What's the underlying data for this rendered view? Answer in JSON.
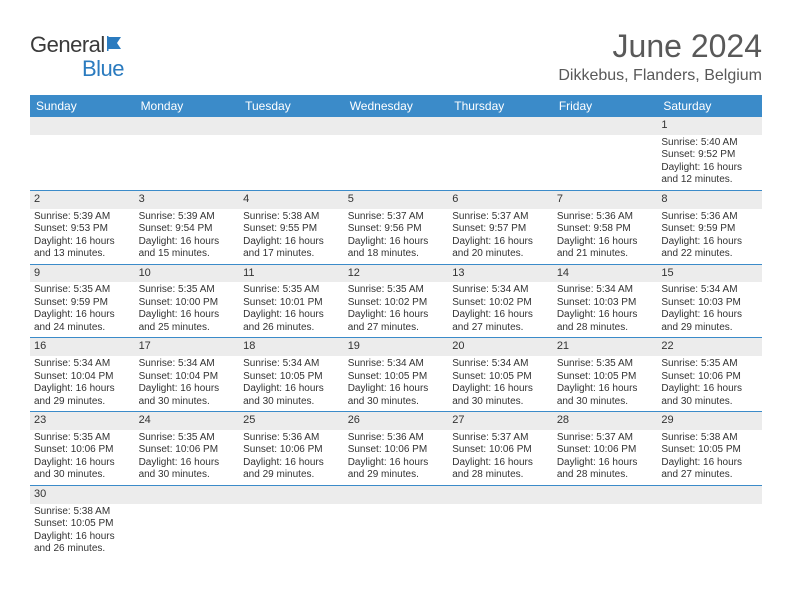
{
  "logo": {
    "part1": "General",
    "part2": "Blue"
  },
  "title": "June 2024",
  "location": "Dikkebus, Flanders, Belgium",
  "dayHeaders": [
    "Sunday",
    "Monday",
    "Tuesday",
    "Wednesday",
    "Thursday",
    "Friday",
    "Saturday"
  ],
  "colors": {
    "headerBg": "#3b8bc9",
    "headerText": "#ffffff",
    "dayNumBg": "#ececec",
    "titleColor": "#595959",
    "brandBlue": "#2b7bbf"
  },
  "weeks": [
    [
      null,
      null,
      null,
      null,
      null,
      null,
      {
        "n": "1",
        "sr": "5:40 AM",
        "ss": "9:52 PM",
        "dl": "16 hours and 12 minutes."
      }
    ],
    [
      {
        "n": "2",
        "sr": "5:39 AM",
        "ss": "9:53 PM",
        "dl": "16 hours and 13 minutes."
      },
      {
        "n": "3",
        "sr": "5:39 AM",
        "ss": "9:54 PM",
        "dl": "16 hours and 15 minutes."
      },
      {
        "n": "4",
        "sr": "5:38 AM",
        "ss": "9:55 PM",
        "dl": "16 hours and 17 minutes."
      },
      {
        "n": "5",
        "sr": "5:37 AM",
        "ss": "9:56 PM",
        "dl": "16 hours and 18 minutes."
      },
      {
        "n": "6",
        "sr": "5:37 AM",
        "ss": "9:57 PM",
        "dl": "16 hours and 20 minutes."
      },
      {
        "n": "7",
        "sr": "5:36 AM",
        "ss": "9:58 PM",
        "dl": "16 hours and 21 minutes."
      },
      {
        "n": "8",
        "sr": "5:36 AM",
        "ss": "9:59 PM",
        "dl": "16 hours and 22 minutes."
      }
    ],
    [
      {
        "n": "9",
        "sr": "5:35 AM",
        "ss": "9:59 PM",
        "dl": "16 hours and 24 minutes."
      },
      {
        "n": "10",
        "sr": "5:35 AM",
        "ss": "10:00 PM",
        "dl": "16 hours and 25 minutes."
      },
      {
        "n": "11",
        "sr": "5:35 AM",
        "ss": "10:01 PM",
        "dl": "16 hours and 26 minutes."
      },
      {
        "n": "12",
        "sr": "5:35 AM",
        "ss": "10:02 PM",
        "dl": "16 hours and 27 minutes."
      },
      {
        "n": "13",
        "sr": "5:34 AM",
        "ss": "10:02 PM",
        "dl": "16 hours and 27 minutes."
      },
      {
        "n": "14",
        "sr": "5:34 AM",
        "ss": "10:03 PM",
        "dl": "16 hours and 28 minutes."
      },
      {
        "n": "15",
        "sr": "5:34 AM",
        "ss": "10:03 PM",
        "dl": "16 hours and 29 minutes."
      }
    ],
    [
      {
        "n": "16",
        "sr": "5:34 AM",
        "ss": "10:04 PM",
        "dl": "16 hours and 29 minutes."
      },
      {
        "n": "17",
        "sr": "5:34 AM",
        "ss": "10:04 PM",
        "dl": "16 hours and 30 minutes."
      },
      {
        "n": "18",
        "sr": "5:34 AM",
        "ss": "10:05 PM",
        "dl": "16 hours and 30 minutes."
      },
      {
        "n": "19",
        "sr": "5:34 AM",
        "ss": "10:05 PM",
        "dl": "16 hours and 30 minutes."
      },
      {
        "n": "20",
        "sr": "5:34 AM",
        "ss": "10:05 PM",
        "dl": "16 hours and 30 minutes."
      },
      {
        "n": "21",
        "sr": "5:35 AM",
        "ss": "10:05 PM",
        "dl": "16 hours and 30 minutes."
      },
      {
        "n": "22",
        "sr": "5:35 AM",
        "ss": "10:06 PM",
        "dl": "16 hours and 30 minutes."
      }
    ],
    [
      {
        "n": "23",
        "sr": "5:35 AM",
        "ss": "10:06 PM",
        "dl": "16 hours and 30 minutes."
      },
      {
        "n": "24",
        "sr": "5:35 AM",
        "ss": "10:06 PM",
        "dl": "16 hours and 30 minutes."
      },
      {
        "n": "25",
        "sr": "5:36 AM",
        "ss": "10:06 PM",
        "dl": "16 hours and 29 minutes."
      },
      {
        "n": "26",
        "sr": "5:36 AM",
        "ss": "10:06 PM",
        "dl": "16 hours and 29 minutes."
      },
      {
        "n": "27",
        "sr": "5:37 AM",
        "ss": "10:06 PM",
        "dl": "16 hours and 28 minutes."
      },
      {
        "n": "28",
        "sr": "5:37 AM",
        "ss": "10:06 PM",
        "dl": "16 hours and 28 minutes."
      },
      {
        "n": "29",
        "sr": "5:38 AM",
        "ss": "10:05 PM",
        "dl": "16 hours and 27 minutes."
      }
    ],
    [
      {
        "n": "30",
        "sr": "5:38 AM",
        "ss": "10:05 PM",
        "dl": "16 hours and 26 minutes."
      },
      null,
      null,
      null,
      null,
      null,
      null
    ]
  ],
  "labels": {
    "sunrise": "Sunrise: ",
    "sunset": "Sunset: ",
    "daylight": "Daylight: "
  }
}
